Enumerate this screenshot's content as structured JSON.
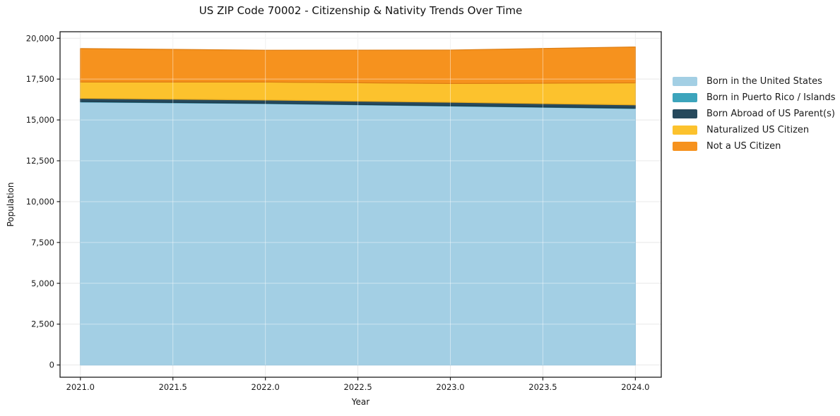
{
  "chart_data": {
    "type": "area",
    "stacked": true,
    "title": "US ZIP Code 70002 - Citizenship & Nativity Trends Over Time",
    "xlabel": "Year",
    "ylabel": "Population",
    "x": [
      2021,
      2022,
      2023,
      2024
    ],
    "series": [
      {
        "name": "Born in the United States",
        "color": "#a3cfe4",
        "edge": "#85bcd8",
        "values": [
          16100,
          16000,
          15850,
          15700
        ]
      },
      {
        "name": "Born in Puerto Rico / Islands",
        "color": "#3ca4bc",
        "edge": "#2f8fa6",
        "values": [
          20,
          20,
          20,
          20
        ]
      },
      {
        "name": "Born Abroad of US Parent(s)",
        "color": "#26495c",
        "edge": "#1d3a4a",
        "values": [
          200,
          200,
          210,
          200
        ]
      },
      {
        "name": "Naturalized US Citizen",
        "color": "#fcc22d",
        "edge": "#e3a81f",
        "values": [
          1000,
          1100,
          1150,
          1350
        ]
      },
      {
        "name": "Not a US Citizen",
        "color": "#f6921e",
        "edge": "#dd7d12",
        "values": [
          2050,
          1950,
          2050,
          2200
        ]
      }
    ],
    "xlim": [
      2020.89,
      2024.14
    ],
    "ylim": [
      -750,
      20400
    ],
    "x_ticks": {
      "values": [
        2021,
        2021.5,
        2022,
        2022.5,
        2023,
        2023.5,
        2024
      ],
      "labels": [
        "2021.0",
        "2021.5",
        "2022.0",
        "2022.5",
        "2023.0",
        "2023.5",
        "2024.0"
      ]
    },
    "y_ticks": {
      "values": [
        0,
        2500,
        5000,
        7500,
        10000,
        12500,
        15000,
        17500,
        20000
      ],
      "labels": [
        "0",
        "2,500",
        "5,000",
        "7,500",
        "10,000",
        "12,500",
        "15,000",
        "17,500",
        "20,000"
      ]
    },
    "grid": true,
    "legend_position": "right",
    "colors": {
      "grid": "#e8e8e8",
      "grid_over_area": "rgba(255,255,255,0.45)",
      "spine": "#1c1c1c",
      "tick_text": "#1a1a1a"
    }
  }
}
